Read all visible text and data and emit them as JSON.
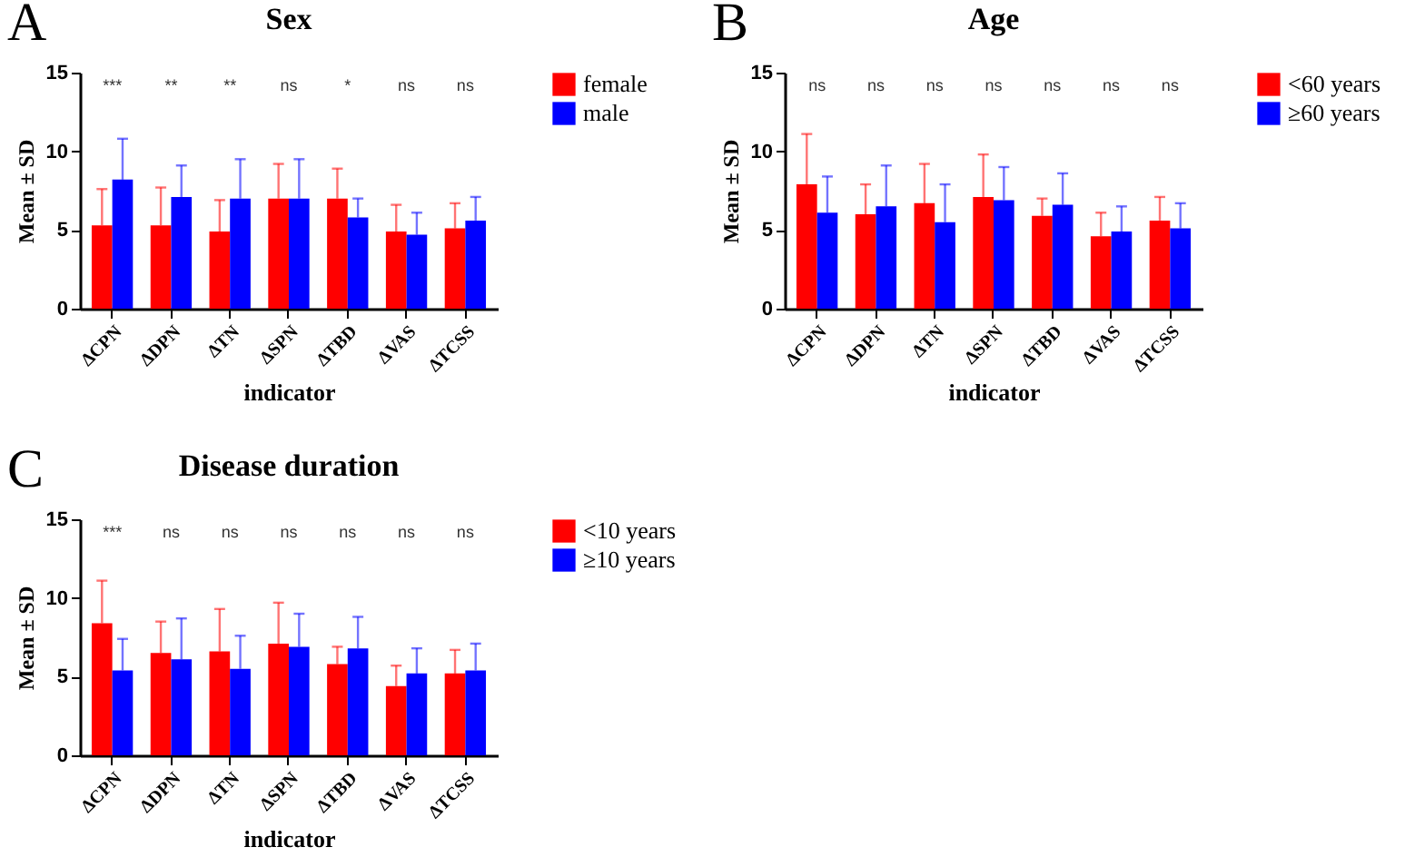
{
  "chart_data": [
    {
      "type": "bar",
      "title": "Sex",
      "xlabel": "indicator",
      "ylabel": "Mean ± SD",
      "ylim": [
        0,
        15
      ],
      "yticks": [
        0,
        5,
        10,
        15
      ],
      "grid": false,
      "legend": "right",
      "categories": [
        "ΔCPN",
        "ΔDPN",
        "ΔTN",
        "ΔSPN",
        "ΔTBD",
        "ΔVAS",
        "ΔTCSS"
      ],
      "series": [
        {
          "name": "female",
          "color": "#ff0000",
          "values": [
            5.3,
            5.3,
            4.9,
            7.0,
            7.0,
            4.9,
            5.1
          ],
          "errors": [
            [
              5.3,
              7.6
            ],
            [
              5.3,
              7.7
            ],
            [
              4.9,
              6.9
            ],
            [
              7.0,
              9.2
            ],
            [
              7.0,
              8.9
            ],
            [
              4.9,
              6.6
            ],
            [
              5.1,
              6.7
            ]
          ]
        },
        {
          "name": "male",
          "color": "#0000ff",
          "values": [
            8.2,
            7.1,
            7.0,
            7.0,
            5.8,
            4.7,
            5.6
          ],
          "errors": [
            [
              8.2,
              10.8
            ],
            [
              7.1,
              9.1
            ],
            [
              7.0,
              9.5
            ],
            [
              7.0,
              9.5
            ],
            [
              5.8,
              7.0
            ],
            [
              4.7,
              6.1
            ],
            [
              5.6,
              7.1
            ]
          ]
        }
      ],
      "annotations": [
        "A",
        "***",
        "**",
        "**",
        "ns",
        "*",
        "ns",
        "ns"
      ]
    },
    {
      "type": "bar",
      "title": "Age",
      "xlabel": "indicator",
      "ylabel": "Mean ± SD",
      "ylim": [
        0,
        15
      ],
      "yticks": [
        0,
        5,
        10,
        15
      ],
      "grid": false,
      "legend": "right",
      "categories": [
        "ΔCPN",
        "ΔDPN",
        "ΔTN",
        "ΔSPN",
        "ΔTBD",
        "ΔVAS",
        "ΔTCSS"
      ],
      "series": [
        {
          "name": "<60 years",
          "color": "#ff0000",
          "values": [
            7.9,
            6.0,
            6.7,
            7.1,
            5.9,
            4.6,
            5.6
          ],
          "errors": [
            [
              7.9,
              11.1
            ],
            [
              6.0,
              7.9
            ],
            [
              6.7,
              9.2
            ],
            [
              7.1,
              9.8
            ],
            [
              5.9,
              7.0
            ],
            [
              4.6,
              6.1
            ],
            [
              5.6,
              7.1
            ]
          ]
        },
        {
          "name": "≥60 years",
          "color": "#0000ff",
          "values": [
            6.1,
            6.5,
            5.5,
            6.9,
            6.6,
            4.9,
            5.1
          ],
          "errors": [
            [
              6.1,
              8.4
            ],
            [
              6.5,
              9.1
            ],
            [
              5.5,
              7.9
            ],
            [
              6.9,
              9.0
            ],
            [
              6.6,
              8.6
            ],
            [
              4.9,
              6.5
            ],
            [
              5.1,
              6.7
            ]
          ]
        }
      ],
      "annotations": [
        "B",
        "ns",
        "ns",
        "ns",
        "ns",
        "ns",
        "ns",
        "ns"
      ]
    },
    {
      "type": "bar",
      "title": "Disease duration",
      "xlabel": "indicator",
      "ylabel": "Mean ± SD",
      "ylim": [
        0,
        15
      ],
      "yticks": [
        0,
        5,
        10,
        15
      ],
      "grid": false,
      "legend": "right",
      "categories": [
        "ΔCPN",
        "ΔDPN",
        "ΔTN",
        "ΔSPN",
        "ΔTBD",
        "ΔVAS",
        "ΔTCSS"
      ],
      "series": [
        {
          "name": "<10 years",
          "color": "#ff0000",
          "values": [
            8.4,
            6.5,
            6.6,
            7.1,
            5.8,
            4.4,
            5.2
          ],
          "errors": [
            [
              8.4,
              11.1
            ],
            [
              6.5,
              8.5
            ],
            [
              6.6,
              9.3
            ],
            [
              7.1,
              9.7
            ],
            [
              5.8,
              6.9
            ],
            [
              4.4,
              5.7
            ],
            [
              5.2,
              6.7
            ]
          ]
        },
        {
          "name": "≥10 years",
          "color": "#0000ff",
          "values": [
            5.4,
            6.1,
            5.5,
            6.9,
            6.8,
            5.2,
            5.4
          ],
          "errors": [
            [
              5.4,
              7.4
            ],
            [
              6.1,
              8.7
            ],
            [
              5.5,
              7.6
            ],
            [
              6.9,
              9.0
            ],
            [
              6.8,
              8.8
            ],
            [
              5.2,
              6.8
            ],
            [
              5.4,
              7.1
            ]
          ]
        }
      ],
      "annotations": [
        "C",
        "***",
        "ns",
        "ns",
        "ns",
        "ns",
        "ns",
        "ns"
      ]
    }
  ]
}
